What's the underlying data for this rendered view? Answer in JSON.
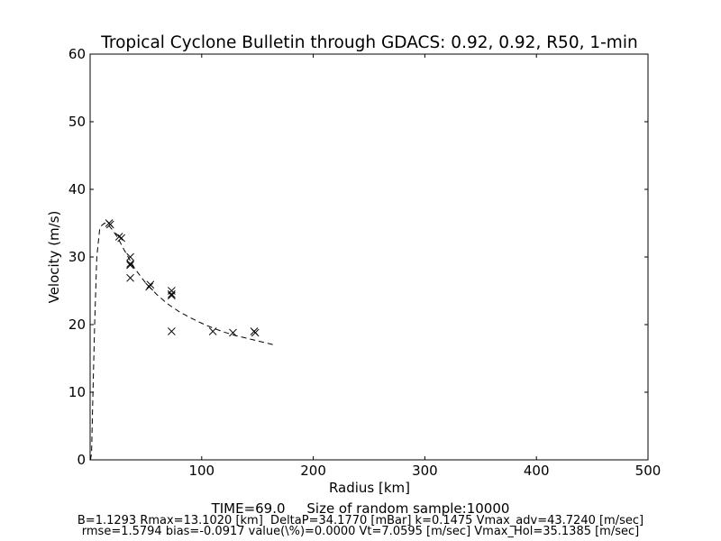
{
  "chart_data": {
    "type": "scatter",
    "title": "Tropical Cyclone Bulletin through GDACS: 0.92, 0.92, R50, 1-min",
    "xlabel": "Radius [km]",
    "ylabel": "Velocity (m/s)",
    "xlim": [
      0,
      500
    ],
    "ylim": [
      0,
      60
    ],
    "x_ticks": [
      100,
      200,
      300,
      400,
      500
    ],
    "y_ticks": [
      0,
      10,
      20,
      30,
      40,
      50,
      60
    ],
    "grid": false,
    "series": [
      {
        "marker": "x",
        "points": [
          [
            17,
            35
          ],
          [
            18,
            34.8
          ],
          [
            26,
            33
          ],
          [
            28,
            32.8
          ],
          [
            36,
            30
          ],
          [
            36,
            29
          ],
          [
            36,
            28.8
          ],
          [
            36,
            26.9
          ],
          [
            53,
            25.6
          ],
          [
            54,
            25.9
          ],
          [
            73,
            25
          ],
          [
            73,
            24.5
          ],
          [
            73,
            24.3
          ],
          [
            73,
            19
          ],
          [
            110,
            19
          ],
          [
            128,
            18.8
          ],
          [
            147,
            19
          ],
          [
            148,
            18.8
          ]
        ]
      },
      {
        "line_style": "dashed",
        "points": [
          [
            0.3,
            0
          ],
          [
            1.3,
            1
          ],
          [
            2.3,
            8
          ],
          [
            4,
            20
          ],
          [
            6,
            30
          ],
          [
            8.5,
            34
          ],
          [
            10.5,
            34.7
          ],
          [
            13,
            35
          ],
          [
            16,
            34.8
          ],
          [
            20,
            34
          ],
          [
            25,
            32.8
          ],
          [
            30,
            31.2
          ],
          [
            40,
            28.3
          ],
          [
            50,
            26.1
          ],
          [
            60,
            24.4
          ],
          [
            70,
            23.0
          ],
          [
            80,
            21.9
          ],
          [
            90,
            21.0
          ],
          [
            100,
            20.2
          ],
          [
            110,
            19.5
          ],
          [
            120,
            18.9
          ],
          [
            130,
            18.4
          ],
          [
            140,
            18.0
          ],
          [
            150,
            17.6
          ],
          [
            160,
            17.2
          ],
          [
            165,
            17.0
          ]
        ]
      }
    ]
  },
  "footer": {
    "time_line": "TIME=69.0     Size of random sample:10000",
    "params_line": "B=1.1293 Rmax=13.1020 [km]  DeltaP=34.1770 [mBar] k=0.1475 Vmax_adv=43.7240 [m/sec]",
    "stats_line": "rmse=1.5794 bias=-0.0917 value(\\%)=0.0000 Vt=7.0595 [m/sec] Vmax_Hol=35.1385 [m/sec]"
  }
}
